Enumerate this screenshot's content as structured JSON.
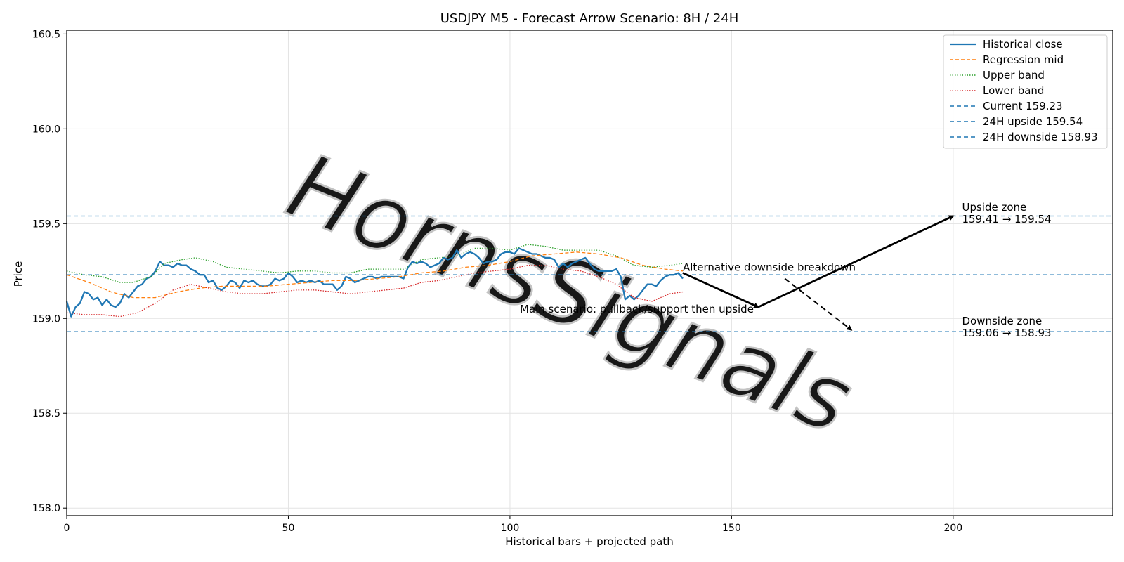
{
  "chart_data": {
    "type": "line",
    "title": "USDJPY M5 - Forecast Arrow Scenario: 8H / 24H",
    "xlabel": "Historical bars + projected path",
    "ylabel": "Price",
    "xlim": [
      0,
      236
    ],
    "ylim": [
      157.96,
      160.52
    ],
    "xticks": [
      0,
      50,
      100,
      150,
      200
    ],
    "yticks": [
      158.0,
      158.5,
      159.0,
      159.5,
      160.0,
      160.5
    ],
    "xtick_labels": [
      "0",
      "50",
      "100",
      "150",
      "200"
    ],
    "ytick_labels": [
      "158.0",
      "158.5",
      "159.0",
      "159.5",
      "160.0",
      "160.5"
    ],
    "grid": true,
    "legend_position": "top-right",
    "colors": {
      "historical": "#1f77b4",
      "regression": "#ff7f0e",
      "upper": "#2ca02c",
      "lower": "#d62728",
      "level": "#1f77b4",
      "arrow": "#000000",
      "watermark": "#c8c8c8"
    },
    "series": [
      {
        "name": "Historical close",
        "style": "solid",
        "x": [
          0,
          1,
          2,
          3,
          4,
          5,
          6,
          7,
          8,
          9,
          10,
          11,
          12,
          13,
          14,
          15,
          16,
          17,
          18,
          19,
          20,
          21,
          22,
          23,
          24,
          25,
          26,
          27,
          28,
          29,
          30,
          31,
          32,
          33,
          34,
          35,
          36,
          37,
          38,
          39,
          40,
          41,
          42,
          43,
          44,
          45,
          46,
          47,
          48,
          49,
          50,
          51,
          52,
          53,
          54,
          55,
          56,
          57,
          58,
          59,
          60,
          61,
          62,
          63,
          64,
          65,
          66,
          67,
          68,
          69,
          70,
          71,
          72,
          73,
          74,
          75,
          76,
          77,
          78,
          79,
          80,
          81,
          82,
          83,
          84,
          85,
          86,
          87,
          88,
          89,
          90,
          91,
          92,
          93,
          94,
          95,
          96,
          97,
          98,
          99,
          100,
          101,
          102,
          103,
          104,
          105,
          106,
          107,
          108,
          109,
          110,
          111,
          112,
          113,
          114,
          115,
          116,
          117,
          118,
          119,
          120,
          121,
          122,
          123,
          124,
          125,
          126,
          127,
          128,
          129,
          130,
          131,
          132,
          133,
          134,
          135,
          136,
          137,
          138,
          139
        ],
        "y": [
          159.09,
          159.01,
          159.06,
          159.08,
          159.14,
          159.13,
          159.1,
          159.11,
          159.07,
          159.1,
          159.07,
          159.06,
          159.08,
          159.13,
          159.11,
          159.14,
          159.17,
          159.18,
          159.21,
          159.22,
          159.25,
          159.3,
          159.28,
          159.28,
          159.27,
          159.29,
          159.28,
          159.28,
          159.26,
          159.25,
          159.23,
          159.23,
          159.19,
          159.2,
          159.16,
          159.15,
          159.17,
          159.2,
          159.19,
          159.16,
          159.2,
          159.19,
          159.2,
          159.18,
          159.17,
          159.17,
          159.18,
          159.21,
          159.2,
          159.21,
          159.24,
          159.22,
          159.19,
          159.2,
          159.19,
          159.2,
          159.19,
          159.2,
          159.18,
          159.18,
          159.18,
          159.15,
          159.17,
          159.22,
          159.21,
          159.19,
          159.2,
          159.21,
          159.22,
          159.22,
          159.21,
          159.22,
          159.22,
          159.22,
          159.22,
          159.22,
          159.21,
          159.27,
          159.3,
          159.29,
          159.3,
          159.29,
          159.27,
          159.28,
          159.29,
          159.32,
          159.31,
          159.32,
          159.36,
          159.32,
          159.34,
          159.35,
          159.34,
          159.32,
          159.29,
          159.3,
          159.3,
          159.31,
          159.34,
          159.35,
          159.35,
          159.34,
          159.37,
          159.36,
          159.35,
          159.34,
          159.34,
          159.33,
          159.32,
          159.32,
          159.31,
          159.27,
          159.29,
          159.27,
          159.29,
          159.3,
          159.31,
          159.32,
          159.29,
          159.26,
          159.25,
          159.25,
          159.25,
          159.25,
          159.26,
          159.22,
          159.1,
          159.12,
          159.1,
          159.12,
          159.15,
          159.18,
          159.18,
          159.17,
          159.2,
          159.22,
          159.23,
          159.23,
          159.24,
          159.21
        ]
      },
      {
        "name": "Regression mid",
        "style": "dashed",
        "x": [
          0,
          5,
          10,
          15,
          20,
          25,
          30,
          35,
          40,
          45,
          50,
          55,
          60,
          65,
          70,
          75,
          80,
          85,
          90,
          95,
          100,
          105,
          110,
          115,
          120,
          125,
          130,
          135,
          139
        ],
        "y": [
          159.23,
          159.19,
          159.14,
          159.11,
          159.11,
          159.14,
          159.16,
          159.17,
          159.17,
          159.17,
          159.18,
          159.19,
          159.2,
          159.2,
          159.21,
          159.22,
          159.24,
          159.25,
          159.27,
          159.28,
          159.3,
          159.33,
          159.34,
          159.35,
          159.34,
          159.32,
          159.28,
          159.26,
          159.25
        ]
      },
      {
        "name": "Upper band",
        "style": "dotted",
        "x": [
          0,
          4,
          8,
          12,
          15,
          19,
          22,
          26,
          29,
          33,
          36,
          40,
          44,
          48,
          52,
          56,
          60,
          64,
          68,
          72,
          76,
          80,
          84,
          88,
          92,
          96,
          100,
          104,
          108,
          112,
          116,
          120,
          124,
          128,
          132,
          136,
          139
        ],
        "y": [
          159.25,
          159.23,
          159.22,
          159.19,
          159.19,
          159.22,
          159.29,
          159.31,
          159.32,
          159.3,
          159.27,
          159.26,
          159.25,
          159.24,
          159.25,
          159.25,
          159.24,
          159.24,
          159.26,
          159.26,
          159.26,
          159.31,
          159.32,
          159.33,
          159.37,
          159.37,
          159.36,
          159.39,
          159.38,
          159.36,
          159.36,
          159.36,
          159.33,
          159.28,
          159.27,
          159.28,
          159.29
        ]
      },
      {
        "name": "Lower band",
        "style": "dotted",
        "x": [
          0,
          4,
          8,
          12,
          16,
          20,
          24,
          28,
          32,
          36,
          40,
          44,
          48,
          52,
          56,
          60,
          64,
          68,
          72,
          76,
          80,
          84,
          88,
          92,
          96,
          100,
          104,
          108,
          112,
          116,
          120,
          124,
          128,
          132,
          136,
          139
        ],
        "y": [
          159.03,
          159.02,
          159.02,
          159.01,
          159.03,
          159.08,
          159.15,
          159.18,
          159.16,
          159.14,
          159.13,
          159.13,
          159.14,
          159.15,
          159.15,
          159.14,
          159.13,
          159.14,
          159.15,
          159.16,
          159.19,
          159.2,
          159.22,
          159.24,
          159.25,
          159.26,
          159.28,
          159.28,
          159.26,
          159.25,
          159.22,
          159.18,
          159.11,
          159.09,
          159.13,
          159.14
        ]
      },
      {
        "name": "Current 159.23",
        "style": "dashed",
        "level": 159.23
      },
      {
        "name": "24H upside 159.54",
        "style": "dashed",
        "level": 159.54
      },
      {
        "name": "24H downside 158.93",
        "style": "dashed",
        "level": 158.93
      }
    ],
    "arrows": [
      {
        "from": [
          139,
          159.24
        ],
        "to": [
          156,
          159.06
        ],
        "style": "solid"
      },
      {
        "from": [
          156,
          159.06
        ],
        "to": [
          200,
          159.54
        ],
        "style": "solid"
      },
      {
        "from": [
          162,
          159.21
        ],
        "to": [
          177,
          158.94
        ],
        "style": "dashed"
      }
    ],
    "annotations": [
      {
        "key": "alt",
        "text": "Alternative downside breakdown",
        "x": 139,
        "y": 159.24
      },
      {
        "key": "main",
        "text": "Main scenario: pullback/support then upside",
        "x": 155,
        "y": 159.06
      },
      {
        "key": "up_title",
        "text": "Upside zone",
        "x": 202,
        "y": 159.56
      },
      {
        "key": "up_range",
        "text": "159.41 → 159.54",
        "x": 202,
        "y": 159.56
      },
      {
        "key": "dn_title",
        "text": "Downside zone",
        "x": 202,
        "y": 158.96
      },
      {
        "key": "dn_range",
        "text": "159.06 → 158.93",
        "x": 202,
        "y": 158.96
      }
    ],
    "watermark": "HornsSignals"
  }
}
